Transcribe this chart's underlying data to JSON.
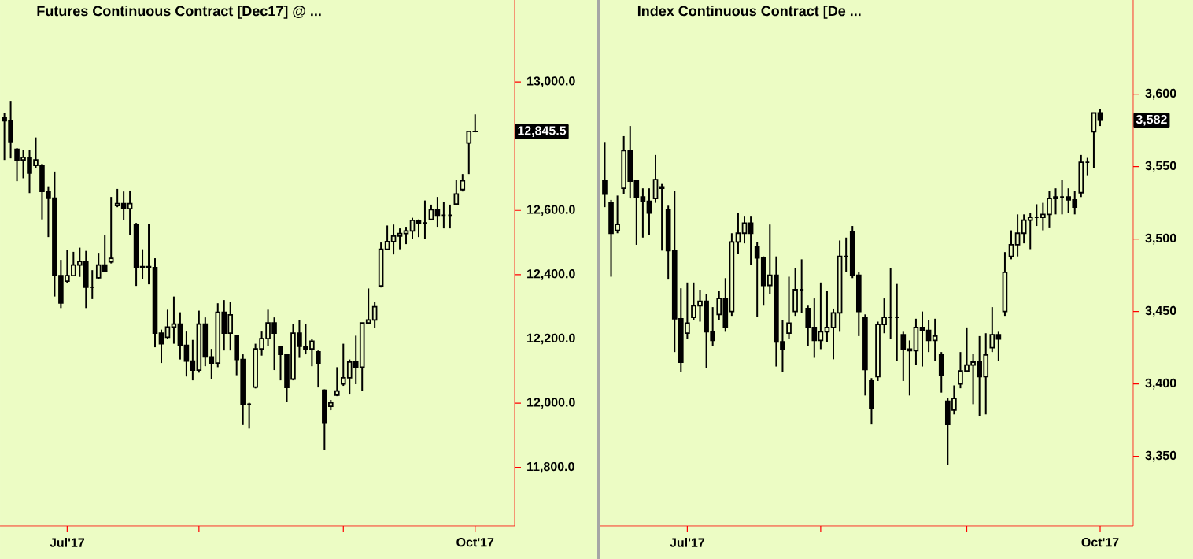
{
  "chart_data": [
    {
      "type": "candlestick",
      "title": "Futures Continuous Contract [Dec17]  @ ...",
      "categories": [
        null,
        null,
        null,
        null,
        null,
        null,
        null,
        null,
        null,
        null,
        null,
        null,
        null,
        null,
        null,
        null,
        null,
        null,
        null,
        null,
        null,
        null,
        null,
        null,
        null,
        null,
        null,
        null,
        null,
        null,
        null,
        null,
        null,
        null,
        null,
        null,
        null,
        null,
        null,
        null,
        null,
        null,
        null,
        null,
        null,
        null,
        null,
        null,
        null,
        null,
        null,
        null,
        null,
        null,
        null,
        null,
        null,
        null,
        null,
        null,
        null,
        null,
        null,
        null,
        null,
        null,
        null,
        null,
        null,
        null,
        null,
        null,
        null,
        null,
        null,
        null
      ],
      "ohlc": [
        [
          12890,
          12904,
          12757,
          12879
        ],
        [
          12879,
          12941,
          12762,
          12814
        ],
        [
          12790,
          12794,
          12691,
          12757
        ],
        [
          12757,
          12789,
          12700,
          12765
        ],
        [
          12765,
          12789,
          12654,
          12716
        ],
        [
          12740,
          12827,
          12732,
          12757
        ],
        [
          12740,
          12745,
          12572,
          12659
        ],
        [
          12659,
          12675,
          12517,
          12638
        ],
        [
          12638,
          12721,
          12332,
          12397
        ],
        [
          12397,
          12446,
          12296,
          12312
        ],
        [
          12380,
          12476,
          12373,
          12397
        ],
        [
          12397,
          12471,
          12397,
          12430
        ],
        [
          12430,
          12484,
          12393,
          12441
        ],
        [
          12441,
          12474,
          12296,
          12361
        ],
        [
          12361,
          12414,
          12324,
          12361
        ],
        [
          12390,
          12468,
          12386,
          12430
        ],
        [
          12430,
          12523,
          12409,
          12409
        ],
        [
          12440,
          12642,
          12435,
          12451
        ],
        [
          12615,
          12667,
          12610,
          12621
        ],
        [
          12621,
          12659,
          12569,
          12605
        ],
        [
          12605,
          12662,
          12523,
          12621
        ],
        [
          12555,
          12561,
          12365,
          12422
        ],
        [
          12422,
          12479,
          12386,
          12425
        ],
        [
          12425,
          12557,
          12370,
          12422
        ],
        [
          12422,
          12451,
          12174,
          12218
        ],
        [
          12218,
          12229,
          12125,
          12185
        ],
        [
          12205,
          12291,
          12201,
          12237
        ],
        [
          12237,
          12332,
          12185,
          12246
        ],
        [
          12246,
          12283,
          12136,
          12180
        ],
        [
          12180,
          12223,
          12083,
          12131
        ],
        [
          12131,
          12197,
          12071,
          12103
        ],
        [
          12103,
          12288,
          12095,
          12246
        ],
        [
          12246,
          12267,
          12115,
          12144
        ],
        [
          12144,
          12169,
          12076,
          12125
        ],
        [
          12125,
          12311,
          12112,
          12283
        ],
        [
          12283,
          12321,
          12164,
          12218
        ],
        [
          12218,
          12316,
          12164,
          12275
        ],
        [
          12210,
          12213,
          12087,
          12136
        ],
        [
          12136,
          12152,
          11932,
          11997
        ],
        [
          11997,
          12001,
          11921,
          11997
        ],
        [
          12050,
          12185,
          12046,
          12169
        ],
        [
          12169,
          12223,
          12148,
          12201
        ],
        [
          12201,
          12291,
          12177,
          12250
        ],
        [
          12250,
          12267,
          12103,
          12218
        ],
        [
          12175,
          12177,
          12071,
          12152
        ],
        [
          12152,
          12152,
          12005,
          12049
        ],
        [
          12075,
          12246,
          12071,
          12218
        ],
        [
          12218,
          12259,
          12141,
          12177
        ],
        [
          12177,
          12247,
          12152,
          12169
        ],
        [
          12169,
          12201,
          12115,
          12193
        ],
        [
          12160,
          12164,
          12049,
          12125
        ],
        [
          12040,
          12043,
          11854,
          11940
        ],
        [
          11990,
          12010,
          11978,
          12001
        ],
        [
          12025,
          12112,
          12022,
          12038
        ],
        [
          12060,
          12185,
          12054,
          12079
        ],
        [
          12079,
          12136,
          12027,
          12128
        ],
        [
          12128,
          12210,
          12059,
          12112
        ],
        [
          12112,
          12250,
          12038,
          12250
        ],
        [
          12250,
          12357,
          12250,
          12259
        ],
        [
          12259,
          12316,
          12234,
          12300
        ],
        [
          12365,
          12500,
          12360,
          12479
        ],
        [
          12479,
          12553,
          12479,
          12503
        ],
        [
          12503,
          12556,
          12463,
          12520
        ],
        [
          12520,
          12544,
          12479,
          12528
        ],
        [
          12528,
          12549,
          12495,
          12536
        ],
        [
          12536,
          12577,
          12512,
          12569
        ],
        [
          12569,
          12572,
          12517,
          12561
        ],
        [
          12561,
          12631,
          12512,
          12561
        ],
        [
          12572,
          12618,
          12569,
          12602
        ],
        [
          12602,
          12642,
          12549,
          12585
        ],
        [
          12585,
          12626,
          12544,
          12585
        ],
        [
          12585,
          12618,
          12544,
          12585
        ],
        [
          12620,
          12696,
          12618,
          12651
        ],
        [
          12665,
          12713,
          12659,
          12692
        ],
        [
          12810,
          12846,
          12713,
          12846
        ],
        [
          12846,
          12899,
          12843,
          12845.5
        ]
      ],
      "ylim": [
        11618,
        13255
      ],
      "yticks": [
        {
          "value": 11800,
          "label": "11,800.0"
        },
        {
          "value": 12000,
          "label": "12,000.0"
        },
        {
          "value": 12200,
          "label": "12,200.0"
        },
        {
          "value": 12400,
          "label": "12,400.0"
        },
        {
          "value": 12600,
          "label": "12,600.0"
        },
        {
          "value": 13000,
          "label": "13,000.0"
        }
      ],
      "annotations": [
        "Jul'17",
        "Oct'17",
        "12,845.5"
      ]
    },
    {
      "type": "candlestick",
      "title": "Index Continuous Contract [De ...",
      "categories": [
        null,
        null,
        null,
        null,
        null,
        null,
        null,
        null,
        null,
        null,
        null,
        null,
        null,
        null,
        null,
        null,
        null,
        null,
        null,
        null,
        null,
        null,
        null,
        null,
        null,
        null,
        null,
        null,
        null,
        null,
        null,
        null,
        null,
        null,
        null,
        null,
        null,
        null,
        null,
        null,
        null,
        null,
        null,
        null,
        null,
        null,
        null,
        null,
        null,
        null,
        null,
        null,
        null,
        null,
        null,
        null,
        null,
        null,
        null,
        null,
        null,
        null,
        null,
        null,
        null,
        null,
        null,
        null,
        null,
        null,
        null,
        null,
        null,
        null,
        null,
        null,
        null,
        null,
        null
      ],
      "ohlc": [
        [
          3540,
          3567,
          3522,
          3531
        ],
        [
          3525,
          3527,
          3474,
          3504
        ],
        [
          3506,
          3530,
          3504,
          3510
        ],
        [
          3535,
          3571,
          3531,
          3561
        ],
        [
          3561,
          3578,
          3528,
          3540
        ],
        [
          3540,
          3540,
          3496,
          3529
        ],
        [
          3529,
          3535,
          3501,
          3526
        ],
        [
          3526,
          3535,
          3503,
          3518
        ],
        [
          3528,
          3558,
          3525,
          3541
        ],
        [
          3536,
          3538,
          3492,
          3535
        ],
        [
          3520,
          3523,
          3472,
          3492
        ],
        [
          3492,
          3533,
          3422,
          3445
        ],
        [
          3445,
          3466,
          3408,
          3415
        ],
        [
          3435,
          3470,
          3431,
          3442
        ],
        [
          3446,
          3470,
          3444,
          3454
        ],
        [
          3454,
          3465,
          3443,
          3457
        ],
        [
          3457,
          3462,
          3411,
          3436
        ],
        [
          3436,
          3453,
          3426,
          3430
        ],
        [
          3448,
          3464,
          3444,
          3459
        ],
        [
          3459,
          3473,
          3436,
          3439
        ],
        [
          3450,
          3504,
          3447,
          3498
        ],
        [
          3498,
          3518,
          3490,
          3504
        ],
        [
          3504,
          3516,
          3497,
          3511
        ],
        [
          3511,
          3516,
          3482,
          3504
        ],
        [
          3495,
          3498,
          3446,
          3487
        ],
        [
          3487,
          3488,
          3454,
          3468
        ],
        [
          3468,
          3510,
          3462,
          3475
        ],
        [
          3475,
          3488,
          3412,
          3429
        ],
        [
          3429,
          3444,
          3408,
          3424
        ],
        [
          3435,
          3474,
          3431,
          3442
        ],
        [
          3450,
          3480,
          3447,
          3465
        ],
        [
          3465,
          3486,
          3449,
          3465
        ],
        [
          3452,
          3454,
          3426,
          3439
        ],
        [
          3439,
          3459,
          3418,
          3430
        ],
        [
          3430,
          3470,
          3424,
          3436
        ],
        [
          3436,
          3464,
          3429,
          3439
        ],
        [
          3439,
          3452,
          3417,
          3449
        ],
        [
          3449,
          3499,
          3436,
          3488
        ],
        [
          3488,
          3501,
          3477,
          3488
        ],
        [
          3505,
          3509,
          3473,
          3475
        ],
        [
          3475,
          3477,
          3433,
          3450
        ],
        [
          3446,
          3448,
          3392,
          3410
        ],
        [
          3402,
          3404,
          3372,
          3383
        ],
        [
          3405,
          3443,
          3402,
          3441
        ],
        [
          3441,
          3459,
          3435,
          3446
        ],
        [
          3446,
          3480,
          3431,
          3446
        ],
        [
          3446,
          3469,
          3416,
          3446
        ],
        [
          3434,
          3436,
          3402,
          3424
        ],
        [
          3424,
          3430,
          3392,
          3423
        ],
        [
          3423,
          3445,
          3413,
          3439
        ],
        [
          3439,
          3450,
          3412,
          3437
        ],
        [
          3437,
          3444,
          3422,
          3430
        ],
        [
          3430,
          3445,
          3416,
          3433
        ],
        [
          3420,
          3422,
          3394,
          3406
        ],
        [
          3388,
          3390,
          3344,
          3372
        ],
        [
          3382,
          3399,
          3379,
          3390
        ],
        [
          3400,
          3422,
          3397,
          3409
        ],
        [
          3409,
          3439,
          3408,
          3413
        ],
        [
          3413,
          3421,
          3386,
          3415
        ],
        [
          3415,
          3433,
          3378,
          3405
        ],
        [
          3405,
          3435,
          3379,
          3420
        ],
        [
          3425,
          3453,
          3422,
          3434
        ],
        [
          3434,
          3436,
          3416,
          3431
        ],
        [
          3450,
          3491,
          3447,
          3477
        ],
        [
          3488,
          3506,
          3486,
          3496
        ],
        [
          3496,
          3517,
          3488,
          3504
        ],
        [
          3504,
          3517,
          3497,
          3513
        ],
        [
          3513,
          3518,
          3493,
          3515
        ],
        [
          3515,
          3524,
          3509,
          3515
        ],
        [
          3515,
          3525,
          3506,
          3517
        ],
        [
          3517,
          3533,
          3508,
          3528
        ],
        [
          3528,
          3535,
          3517,
          3529
        ],
        [
          3529,
          3541,
          3517,
          3529
        ],
        [
          3529,
          3535,
          3518,
          3527
        ],
        [
          3527,
          3533,
          3517,
          3522
        ],
        [
          3532,
          3558,
          3529,
          3553
        ],
        [
          3553,
          3556,
          3544,
          3553
        ],
        [
          3574,
          3587,
          3549,
          3587
        ],
        [
          3587,
          3590,
          3578,
          3582
        ]
      ],
      "ylim": [
        3302,
        3665
      ],
      "yticks": [
        {
          "value": 3350,
          "label": "3,350"
        },
        {
          "value": 3400,
          "label": "3,400"
        },
        {
          "value": 3450,
          "label": "3,450"
        },
        {
          "value": 3500,
          "label": "3,500"
        },
        {
          "value": 3550,
          "label": "3,550"
        },
        {
          "value": 3600,
          "label": "3,600"
        }
      ],
      "annotations": [
        "Jul'17",
        "Oct'17",
        "3,582"
      ]
    }
  ]
}
